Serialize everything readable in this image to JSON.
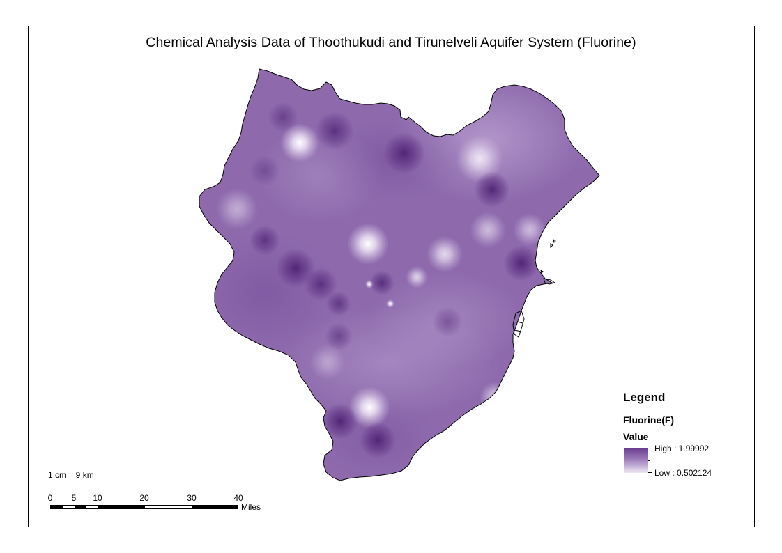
{
  "title": "Chemical Analysis Data of Thoothukudi and Tirunelveli Aquifer System (Fluorine)",
  "legend": {
    "heading": "Legend",
    "layer_name": "Fluorine(F)",
    "field_label": "Value",
    "high_label": "High : 1.99992",
    "low_label": "Low : 0.502124",
    "high_value": 1.99992,
    "low_value": 0.502124,
    "ramp_colors": [
      "#6a3d8f",
      "#9a7ab8",
      "#efe8f4"
    ]
  },
  "scale": {
    "text": "1 cm = 9 km",
    "ticks": [
      "0",
      "5",
      "10",
      "20",
      "30",
      "40"
    ],
    "unit": "Miles"
  },
  "colors": {
    "map_base": "#8e6aad",
    "high": "#5b2e80",
    "low": "#ffffff",
    "outline": "#000000"
  }
}
